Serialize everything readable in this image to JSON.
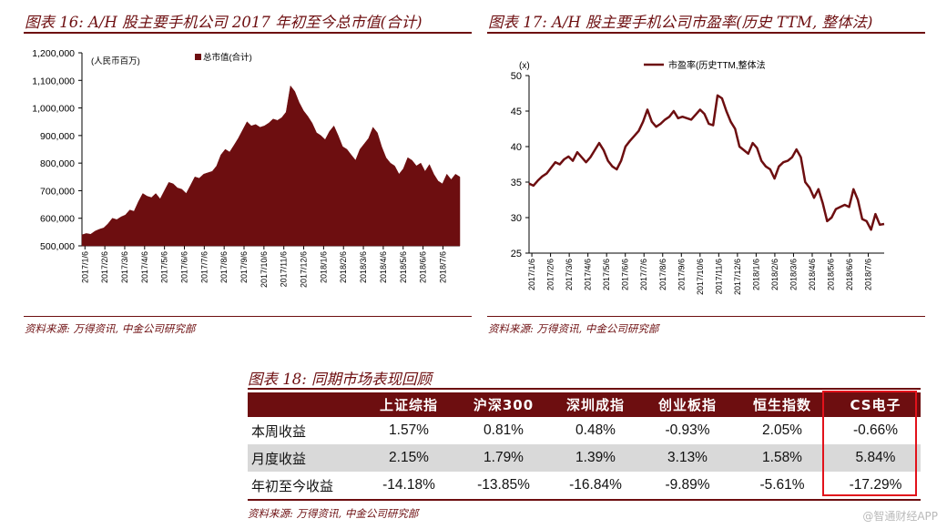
{
  "figure16": {
    "title": "图表 16: A/H 股主要手机公司 2017 年初至今总市值(合计)",
    "source": "资料来源: 万得资讯, 中金公司研究部"
  },
  "figure17": {
    "title": "图表 17: A/H 股主要手机公司市盈率(历史 TTM, 整体法)",
    "source": "资料来源: 万得资讯, 中金公司研究部"
  },
  "figure18": {
    "title": "图表 18: 同期市场表现回顾",
    "source": "资料来源: 万得资讯, 中金公司研究部"
  },
  "watermark": "@智通财经APP",
  "colors": {
    "maroon": "#6d0e10",
    "highlight_red": "#e2121b",
    "shade": "#d9d9d9"
  },
  "chart_data": [
    {
      "type": "area",
      "title": "",
      "ylabel": "(人民币百万)",
      "xlabel": "",
      "ylim": [
        500000,
        1200000
      ],
      "yticks": [
        "1,200,000",
        "1,100,000",
        "1,000,000",
        "900,000",
        "800,000",
        "700,000",
        "600,000",
        "500,000"
      ],
      "xticks": [
        "2017/1/6",
        "2017/2/6",
        "2017/3/6",
        "2017/4/6",
        "2017/5/6",
        "2017/6/6",
        "2017/7/6",
        "2017/8/6",
        "2017/9/6",
        "2017/10/6",
        "2017/11/6",
        "2017/12/6",
        "2018/1/6",
        "2018/2/6",
        "2018/3/6",
        "2018/4/6",
        "2018/5/6",
        "2018/6/6",
        "2018/7/6"
      ],
      "legend": "top-center",
      "series": [
        {
          "name": "总市值(合计)",
          "values": [
            540000,
            545000,
            542000,
            553000,
            560000,
            565000,
            580000,
            600000,
            595000,
            605000,
            612000,
            630000,
            625000,
            660000,
            690000,
            680000,
            675000,
            690000,
            670000,
            700000,
            730000,
            725000,
            710000,
            705000,
            690000,
            720000,
            750000,
            745000,
            760000,
            765000,
            770000,
            790000,
            830000,
            850000,
            840000,
            865000,
            890000,
            920000,
            950000,
            935000,
            940000,
            930000,
            935000,
            945000,
            960000,
            955000,
            965000,
            985000,
            1080000,
            1060000,
            1020000,
            990000,
            970000,
            945000,
            910000,
            900000,
            885000,
            915000,
            935000,
            900000,
            860000,
            850000,
            830000,
            810000,
            850000,
            870000,
            890000,
            930000,
            910000,
            860000,
            820000,
            800000,
            790000,
            760000,
            780000,
            820000,
            810000,
            790000,
            800000,
            770000,
            795000,
            760000,
            735000,
            725000,
            760000,
            740000,
            760000,
            750000
          ]
        }
      ]
    },
    {
      "type": "line",
      "title": "",
      "ylabel": "(x)",
      "xlabel": "",
      "ylim": [
        25,
        50
      ],
      "yticks": [
        50,
        45,
        40,
        35,
        30,
        25
      ],
      "xticks": [
        "2017/1/6",
        "2017/2/6",
        "2017/3/6",
        "2017/4/6",
        "2017/5/6",
        "2017/6/6",
        "2017/7/6",
        "2017/8/6",
        "2017/9/6",
        "2017/10/6",
        "2017/11/6",
        "2017/12/6",
        "2018/1/6",
        "2018/2/6",
        "2018/3/6",
        "2018/4/6",
        "2018/5/6",
        "2018/6/6",
        "2018/7/6"
      ],
      "legend": "top-center",
      "series": [
        {
          "name": "市盈率(历史TTM,整体法",
          "values": [
            34.8,
            34.5,
            35.2,
            35.8,
            36.2,
            37.0,
            37.8,
            37.5,
            38.2,
            38.6,
            38.0,
            39.2,
            38.5,
            37.8,
            38.5,
            39.5,
            40.5,
            39.5,
            38.0,
            37.2,
            36.8,
            38.0,
            40.0,
            40.8,
            41.5,
            42.2,
            43.5,
            45.2,
            43.5,
            42.8,
            43.2,
            43.8,
            44.2,
            45.0,
            44.0,
            44.2,
            44.0,
            43.8,
            44.5,
            45.2,
            44.6,
            43.2,
            43.0,
            47.2,
            46.8,
            45.0,
            43.5,
            42.5,
            40.0,
            39.5,
            39.0,
            40.5,
            39.8,
            38.0,
            37.2,
            36.8,
            35.5,
            37.2,
            37.8,
            38.0,
            38.5,
            39.6,
            38.5,
            35.0,
            34.2,
            32.8,
            34.0,
            32.0,
            29.5,
            30.0,
            31.2,
            31.5,
            31.8,
            31.5,
            34.0,
            32.5,
            29.8,
            29.5,
            28.3,
            30.5,
            29.0,
            29.1
          ]
        }
      ]
    },
    {
      "type": "table",
      "columns": [
        "",
        "上证综指",
        "沪深300",
        "深圳成指",
        "创业板指",
        "恒生指数",
        "CS电子"
      ],
      "rows": [
        [
          "本周收益",
          "1.57%",
          "0.81%",
          "0.48%",
          "-0.93%",
          "2.05%",
          "-0.66%"
        ],
        [
          "月度收益",
          "2.15%",
          "1.79%",
          "1.39%",
          "3.13%",
          "1.58%",
          "5.84%"
        ],
        [
          "年初至今收益",
          "-14.18%",
          "-13.85%",
          "-16.84%",
          "-9.89%",
          "-5.61%",
          "-17.29%"
        ]
      ]
    }
  ]
}
